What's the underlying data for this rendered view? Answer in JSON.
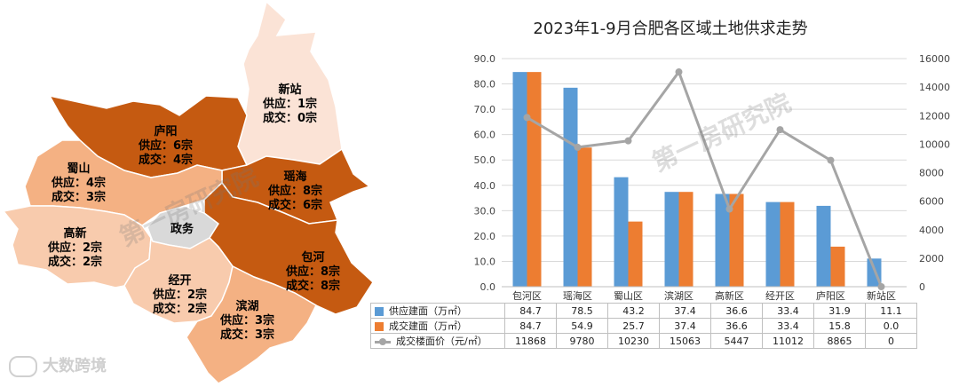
{
  "map": {
    "districts": [
      {
        "key": "xinzhan",
        "name": "新站",
        "supply": "供应：1宗",
        "deal": "成交：0宗",
        "color": "#fbe3d6"
      },
      {
        "key": "luyang",
        "name": "庐阳",
        "supply": "供应：6宗",
        "deal": "成交：4宗",
        "color": "#c55a11"
      },
      {
        "key": "shushan",
        "name": "蜀山",
        "supply": "供应：4宗",
        "deal": "成交：3宗",
        "color": "#f4b183"
      },
      {
        "key": "yaohai",
        "name": "瑶海",
        "supply": "供应：8宗",
        "deal": "成交：6宗",
        "color": "#c55a11"
      },
      {
        "key": "gaoxin",
        "name": "高新",
        "supply": "供应：2宗",
        "deal": "成交：2宗",
        "color": "#f8cbad"
      },
      {
        "key": "zhengwu",
        "name": "政务",
        "supply": "",
        "deal": "",
        "color": "#d9d9d9"
      },
      {
        "key": "baohe",
        "name": "包河",
        "supply": "供应：8宗",
        "deal": "成交：8宗",
        "color": "#c55a11"
      },
      {
        "key": "jingkai",
        "name": "经开",
        "supply": "供应：2宗",
        "deal": "成交：2宗",
        "color": "#f8cbad"
      },
      {
        "key": "binhu",
        "name": "滨湖",
        "supply": "供应：3宗",
        "deal": "成交：3宗",
        "color": "#f4b183"
      }
    ],
    "watermark": "第一房研究院"
  },
  "brand": "大数跨境",
  "chart_data": {
    "type": "bar",
    "title": "2023年1-9月合肥各区域土地供求走势",
    "categories": [
      "包河区",
      "瑶海区",
      "蜀山区",
      "滨湖区",
      "高新区",
      "经开区",
      "庐阳区",
      "新站区"
    ],
    "series": [
      {
        "name": "供应建面（万㎡）",
        "type": "bar",
        "axis": "left",
        "color": "#5b9bd5",
        "values": [
          84.7,
          78.5,
          43.2,
          37.4,
          36.6,
          33.4,
          31.9,
          11.1
        ],
        "labels": [
          "84.7",
          "78.5",
          "43.2",
          "37.4",
          "36.6",
          "33.4",
          "31.9",
          "11.1"
        ]
      },
      {
        "name": "成交建面（万㎡）",
        "type": "bar",
        "axis": "left",
        "color": "#ed7d31",
        "values": [
          84.7,
          54.9,
          25.7,
          37.4,
          36.6,
          33.4,
          15.8,
          0.0
        ],
        "labels": [
          "84.7",
          "54.9",
          "25.7",
          "37.4",
          "36.6",
          "33.4",
          "15.8",
          "0.0"
        ]
      },
      {
        "name": "成交楼面价（元/㎡）",
        "type": "line",
        "axis": "right",
        "color": "#a5a5a5",
        "values": [
          11868,
          9780,
          10230,
          15063,
          5447,
          11012,
          8865,
          0
        ],
        "labels": [
          "11868",
          "9780",
          "10230",
          "15063",
          "5447",
          "11012",
          "8865",
          "0"
        ]
      }
    ],
    "ylim_left": [
      0,
      90
    ],
    "ylim_right": [
      0,
      16000
    ],
    "left_ticks": [
      "0.0",
      "10.0",
      "20.0",
      "30.0",
      "40.0",
      "50.0",
      "60.0",
      "70.0",
      "80.0",
      "90.0"
    ],
    "right_ticks": [
      "0",
      "2000",
      "4000",
      "6000",
      "8000",
      "10000",
      "12000",
      "14000",
      "16000"
    ],
    "grid": true,
    "legend": "table-below",
    "watermark": "第一房研究院"
  }
}
